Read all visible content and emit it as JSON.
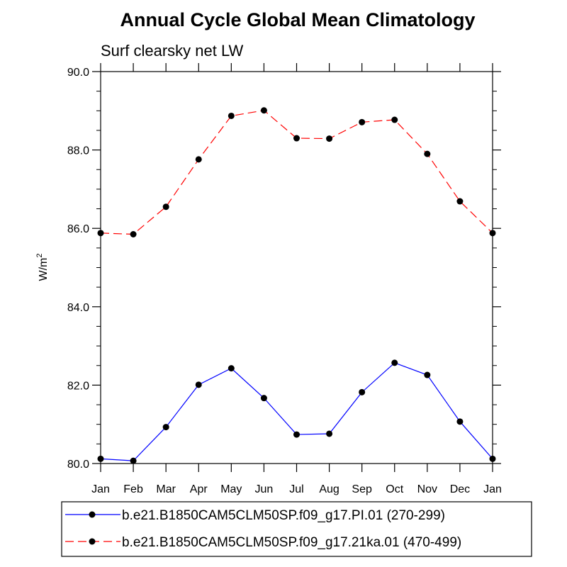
{
  "chart_data": {
    "type": "line",
    "title": "Annual Cycle Global Mean Climatology",
    "subtitle": "Surf clearsky net LW",
    "ylabel": "W/m",
    "ylabel_sup": "2",
    "xlabel": "",
    "categories": [
      "Jan",
      "Feb",
      "Mar",
      "Apr",
      "May",
      "Jun",
      "Jul",
      "Aug",
      "Sep",
      "Oct",
      "Nov",
      "Dec",
      "Jan"
    ],
    "ylim": [
      80.0,
      90.0
    ],
    "yticks": [
      "80.0",
      "82.0",
      "84.0",
      "86.0",
      "88.0",
      "90.0"
    ],
    "grid": false,
    "legend_position": "bottom",
    "series": [
      {
        "name": "b.e21.B1850CAM5CLM50SP.f09_g17.PI.01 (270-299)",
        "color": "#0000ff",
        "style": "solid",
        "values": [
          80.12,
          80.07,
          80.93,
          82.01,
          82.43,
          81.67,
          80.74,
          80.76,
          81.82,
          82.57,
          82.26,
          81.07,
          80.12
        ]
      },
      {
        "name": "b.e21.B1850CAM5CLM50SP.f09_g17.21ka.01 (470-499)",
        "color": "#ff0000",
        "style": "dashed",
        "values": [
          85.88,
          85.85,
          86.55,
          87.76,
          88.87,
          89.01,
          88.3,
          88.29,
          88.71,
          88.77,
          87.9,
          86.69,
          85.88
        ]
      }
    ]
  }
}
